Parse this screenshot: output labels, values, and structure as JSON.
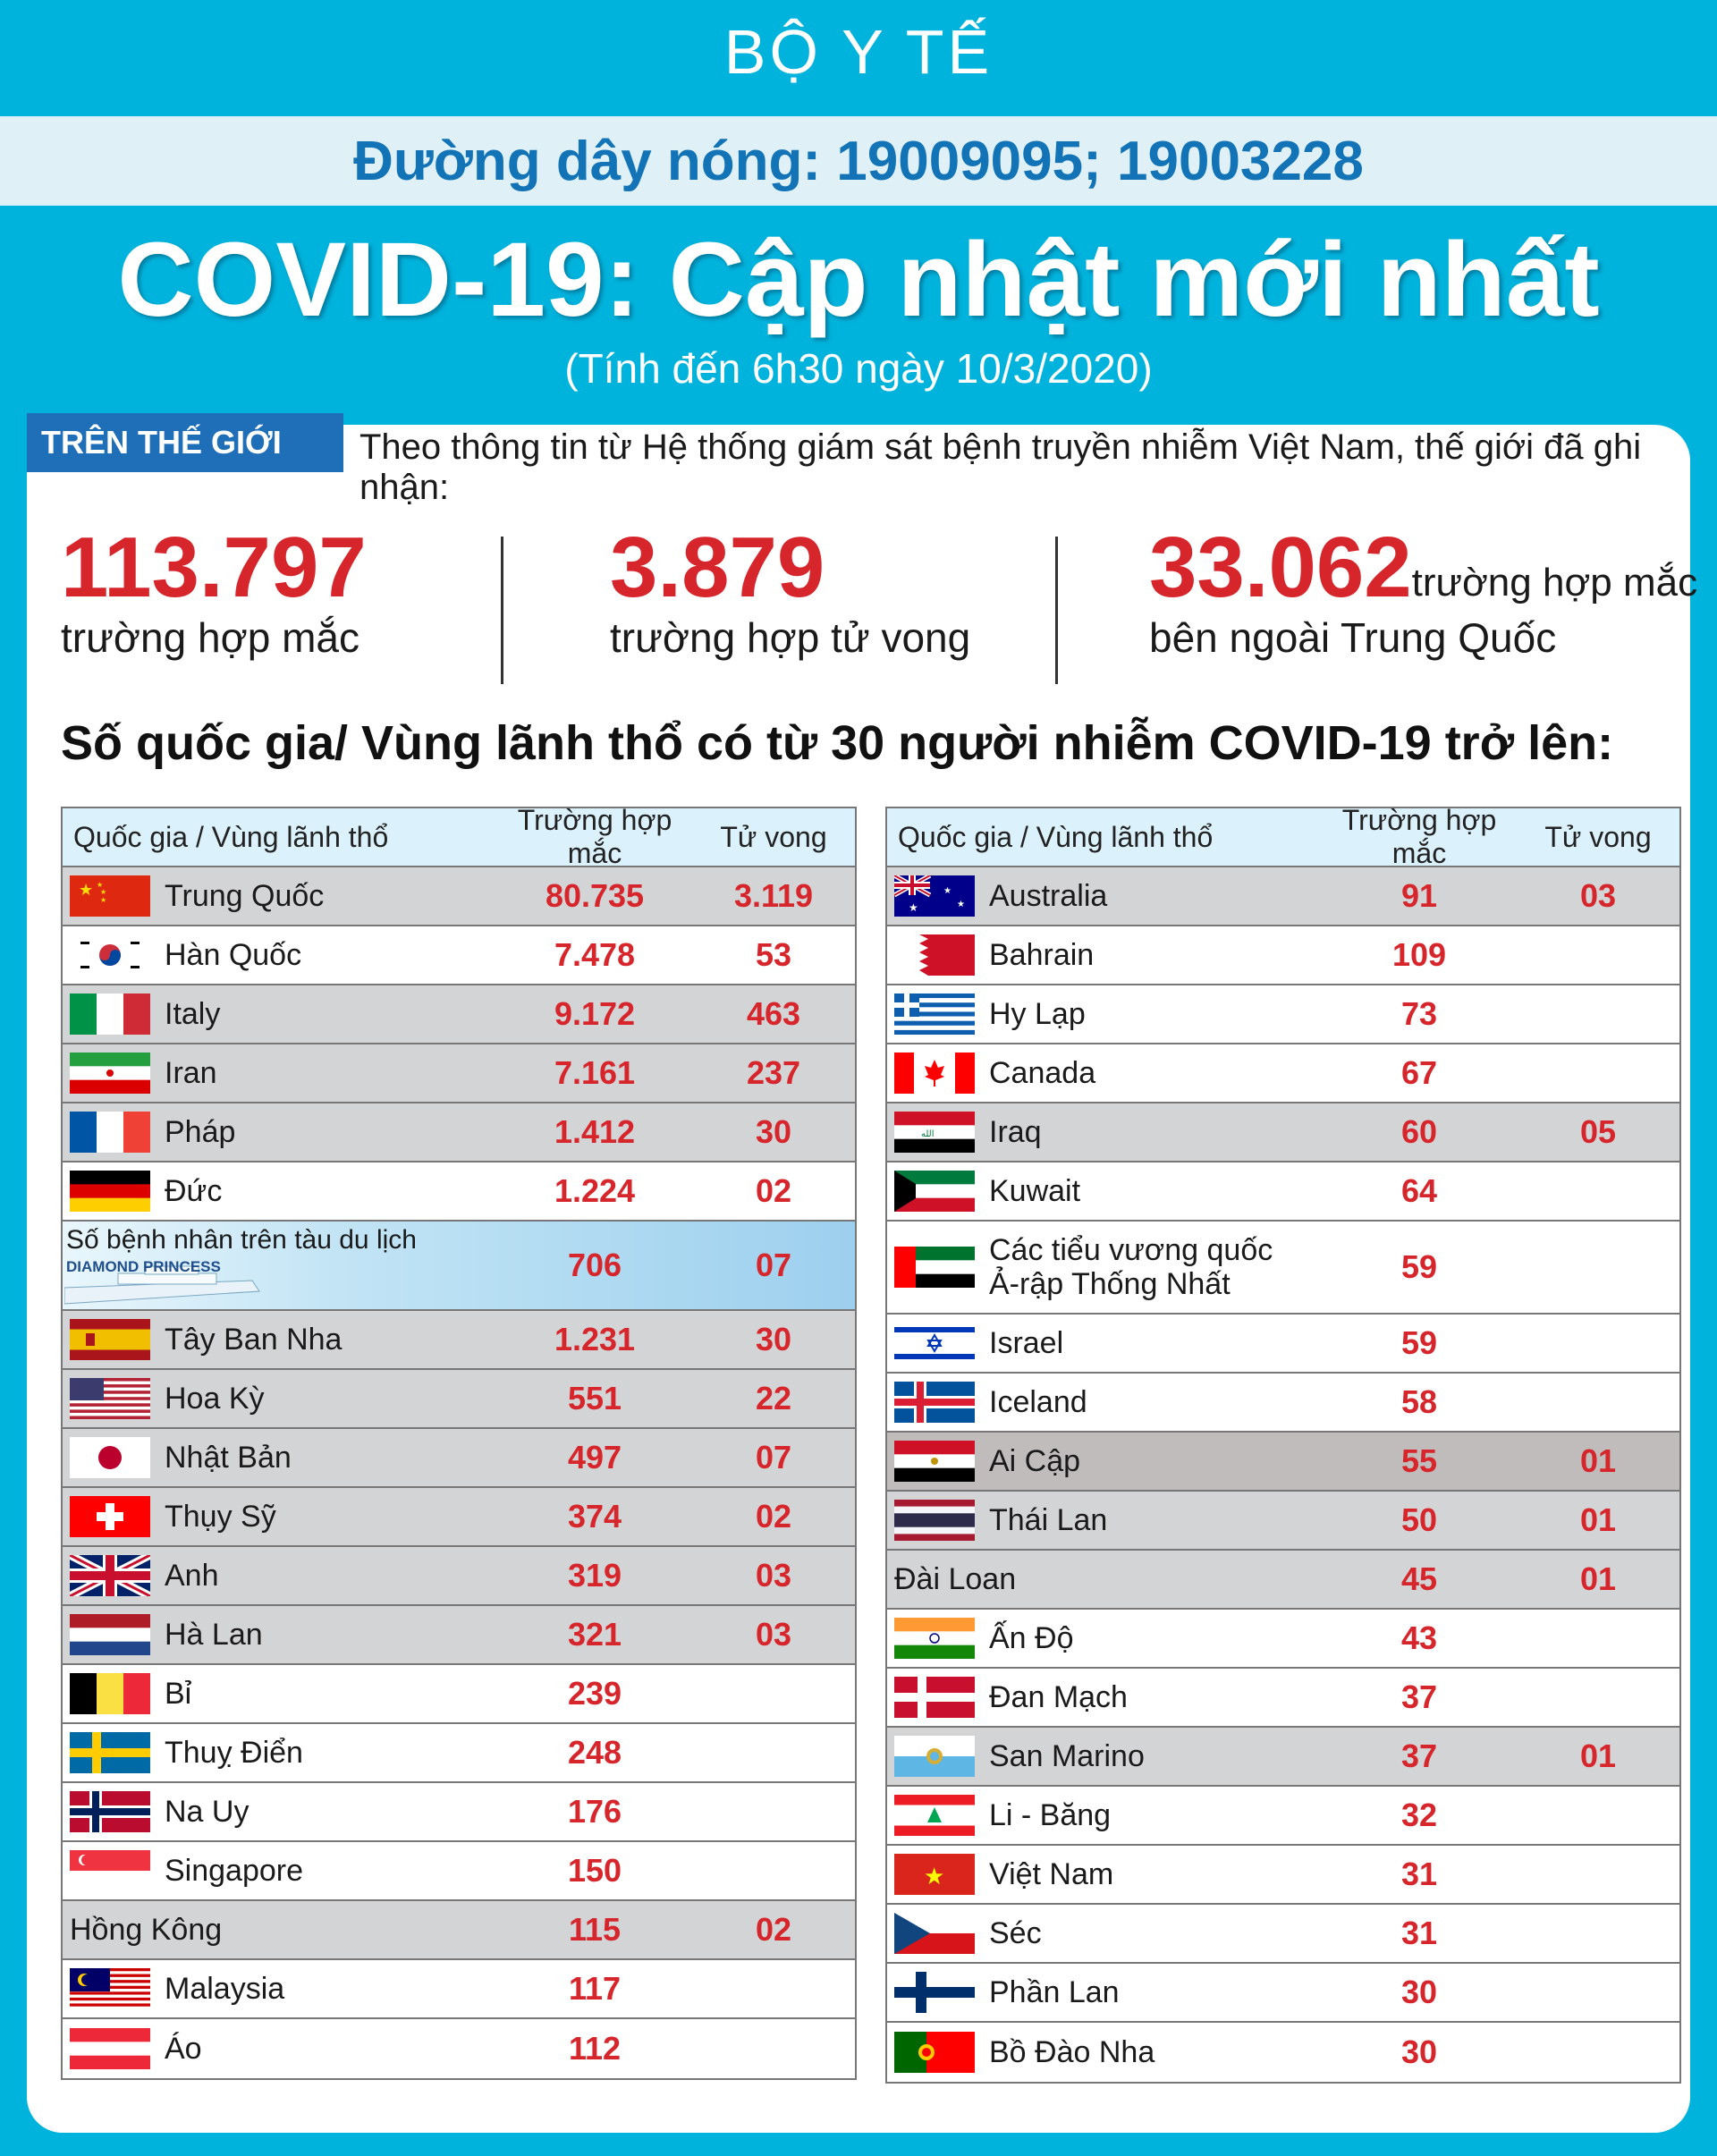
{
  "header": {
    "org": "BỘ Y TẾ",
    "hotline": "Đường dây nóng: 19009095; 19003228",
    "title": "COVID-19: Cập nhật mới nhất",
    "subtitle": "(Tính đến 6h30 ngày 10/3/2020)"
  },
  "world": {
    "tag": "TRÊN THẾ GIỚI",
    "intro": "Theo thông tin từ Hệ thống giám sát bệnh truyền nhiễm Việt Nam, thế giới đã ghi nhận:",
    "stats": [
      {
        "value": "113.797",
        "label": "trường hợp mắc"
      },
      {
        "value": "3.879",
        "label": "trường hợp tử vong"
      },
      {
        "value": "33.062",
        "label_inline": "trường hợp mắc",
        "label": "bên ngoài Trung Quốc"
      }
    ]
  },
  "section_title": "Số quốc gia/ Vùng lãnh thổ có từ 30 người  nhiễm COVID-19 trở lên:",
  "table_headers": {
    "name": "Quốc gia / Vùng lãnh thổ",
    "cases": "Trường hợp mắc",
    "deaths": "Tử vong"
  },
  "colors": {
    "background": "#00b3dc",
    "accent_red": "#d6262c",
    "tag_blue": "#1f6fb8",
    "hotline_blue": "#1273b6"
  },
  "left_table": [
    {
      "name": "Trung Quốc",
      "cases": "80.735",
      "deaths": "3.119",
      "flag": "china-flag",
      "shade": true
    },
    {
      "name": "Hàn Quốc",
      "cases": "7.478",
      "deaths": "53",
      "flag": "south-korea-flag",
      "shade": false
    },
    {
      "name": "Italy",
      "cases": "9.172",
      "deaths": "463",
      "flag": "italy-flag",
      "shade": true
    },
    {
      "name": "Iran",
      "cases": "7.161",
      "deaths": "237",
      "flag": "iran-flag",
      "shade": true
    },
    {
      "name": "Pháp",
      "cases": "1.412",
      "deaths": "30",
      "flag": "france-flag",
      "shade": true
    },
    {
      "name": "Đức",
      "cases": "1.224",
      "deaths": "02",
      "flag": "germany-flag",
      "shade": false
    },
    {
      "name": "Số bệnh nhân trên tàu du lịch",
      "cases": "706",
      "deaths": "07",
      "flag": "ship-image",
      "ship": true,
      "ship_text": "DIAMOND PRINCESS"
    },
    {
      "name": "Tây Ban Nha",
      "cases": "1.231",
      "deaths": "30",
      "flag": "spain-flag",
      "shade": true
    },
    {
      "name": "Hoa Kỳ",
      "cases": "551",
      "deaths": "22",
      "flag": "usa-flag",
      "shade": true
    },
    {
      "name": "Nhật Bản",
      "cases": "497",
      "deaths": "07",
      "flag": "japan-flag",
      "shade": true
    },
    {
      "name": "Thụy Sỹ",
      "cases": "374",
      "deaths": "02",
      "flag": "switzerland-flag",
      "shade": true
    },
    {
      "name": "Anh",
      "cases": "319",
      "deaths": "03",
      "flag": "uk-flag",
      "shade": true
    },
    {
      "name": "Hà Lan",
      "cases": "321",
      "deaths": "03",
      "flag": "netherlands-flag",
      "shade": true
    },
    {
      "name": "Bỉ",
      "cases": "239",
      "deaths": "",
      "flag": "belgium-flag",
      "shade": false
    },
    {
      "name": "Thuỵ Điển",
      "cases": "248",
      "deaths": "",
      "flag": "sweden-flag",
      "shade": false
    },
    {
      "name": "Na Uy",
      "cases": "176",
      "deaths": "",
      "flag": "norway-flag",
      "shade": false
    },
    {
      "name": "Singapore",
      "cases": "150",
      "deaths": "",
      "flag": "singapore-flag",
      "shade": false
    },
    {
      "name": "Hồng Kông",
      "cases": "115",
      "deaths": "02",
      "flag": "",
      "shade": true
    },
    {
      "name": "Malaysia",
      "cases": "117",
      "deaths": "",
      "flag": "malaysia-flag",
      "shade": false
    },
    {
      "name": "Áo",
      "cases": "112",
      "deaths": "",
      "flag": "austria-flag",
      "shade": false
    }
  ],
  "right_table": [
    {
      "name": "Australia",
      "cases": "91",
      "deaths": "03",
      "flag": "australia-flag",
      "shade": true
    },
    {
      "name": "Bahrain",
      "cases": "109",
      "deaths": "",
      "flag": "bahrain-flag",
      "shade": false
    },
    {
      "name": "Hy Lạp",
      "cases": "73",
      "deaths": "",
      "flag": "greece-flag",
      "shade": false
    },
    {
      "name": "Canada",
      "cases": "67",
      "deaths": "",
      "flag": "canada-flag",
      "shade": false
    },
    {
      "name": "Iraq",
      "cases": "60",
      "deaths": "05",
      "flag": "iraq-flag",
      "shade": true
    },
    {
      "name": "Kuwait",
      "cases": "64",
      "deaths": "",
      "flag": "kuwait-flag",
      "shade": false
    },
    {
      "name": "Các tiểu vương quốc",
      "name2": "Ả-rập Thống Nhất",
      "cases": "59",
      "deaths": "",
      "flag": "uae-flag",
      "shade": false
    },
    {
      "name": "Israel",
      "cases": "59",
      "deaths": "",
      "flag": "israel-flag",
      "shade": false
    },
    {
      "name": "Iceland",
      "cases": "58",
      "deaths": "",
      "flag": "iceland-flag",
      "shade": false
    },
    {
      "name": "Ai Cập",
      "cases": "55",
      "deaths": "01",
      "flag": "egypt-flag",
      "dark": true
    },
    {
      "name": "Thái Lan",
      "cases": "50",
      "deaths": "01",
      "flag": "thailand-flag",
      "shade": true
    },
    {
      "name": "Đài Loan",
      "cases": "45",
      "deaths": "01",
      "flag": "",
      "shade": true
    },
    {
      "name": "Ấn Độ",
      "cases": "43",
      "deaths": "",
      "flag": "india-flag",
      "shade": false
    },
    {
      "name": "Đan Mạch",
      "cases": "37",
      "deaths": "",
      "flag": "denmark-flag",
      "shade": false
    },
    {
      "name": "San Marino",
      "cases": "37",
      "deaths": "01",
      "flag": "san-marino-flag",
      "shade": true
    },
    {
      "name": "Li - Băng",
      "cases": "32",
      "deaths": "",
      "flag": "lebanon-flag",
      "shade": false
    },
    {
      "name": "Việt Nam",
      "cases": "31",
      "deaths": "",
      "flag": "vietnam-flag",
      "shade": false
    },
    {
      "name": "Séc",
      "cases": "31",
      "deaths": "",
      "flag": "czech-flag",
      "shade": false
    },
    {
      "name": "Phần Lan",
      "cases": "30",
      "deaths": "",
      "flag": "finland-flag",
      "shade": false
    },
    {
      "name": "Bồ Đào Nha",
      "cases": "30",
      "deaths": "",
      "flag": "portugal-flag",
      "shade": false
    }
  ]
}
